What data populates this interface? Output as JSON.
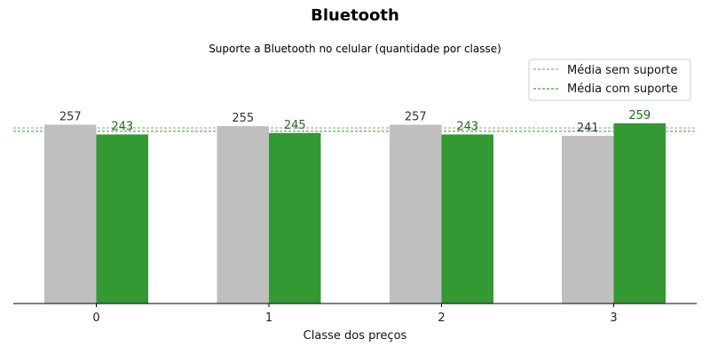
{
  "chart_data": {
    "type": "bar",
    "title": "Bluetooth",
    "subtitle": "Suporte a Bluetooth no celular (quantidade por classe)",
    "xlabel": "Classe dos preços",
    "ylabel": "",
    "categories": [
      "0",
      "1",
      "2",
      "3"
    ],
    "series": [
      {
        "values": [
          257,
          255,
          257,
          241
        ],
        "color": "#bfbfbf",
        "label_color": "#333333"
      },
      {
        "values": [
          243,
          245,
          243,
          259
        ],
        "color": "#339933",
        "label_color": "#1a6e1a"
      }
    ],
    "ylim": [
      0,
      280
    ],
    "reference_lines": [
      {
        "label": "Média sem suporte",
        "value": 252.5,
        "color": "#8a8a8a",
        "style": "dashed"
      },
      {
        "label": "Média com suporte",
        "value": 247.5,
        "color": "#1a8a1a",
        "style": "dashed"
      }
    ],
    "legend_placement": "top-right",
    "grid": false
  }
}
